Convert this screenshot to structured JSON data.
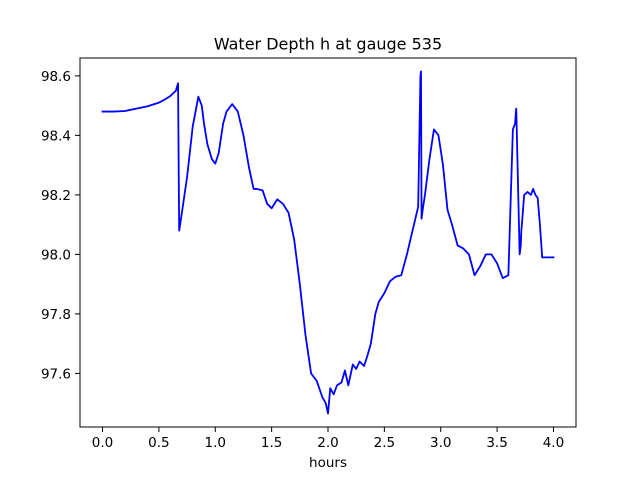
{
  "chart_data": {
    "type": "line",
    "title": "Water Depth h at gauge 535",
    "xlabel": "hours",
    "ylabel": "",
    "xlim": [
      -0.2,
      4.2
    ],
    "ylim": [
      97.42,
      98.66
    ],
    "xticks": [
      0.0,
      0.5,
      1.0,
      1.5,
      2.0,
      2.5,
      3.0,
      3.5,
      4.0
    ],
    "xtick_labels": [
      "0.0",
      "0.5",
      "1.0",
      "1.5",
      "2.0",
      "2.5",
      "3.0",
      "3.5",
      "4.0"
    ],
    "yticks": [
      97.6,
      97.8,
      98.0,
      98.2,
      98.4,
      98.6
    ],
    "ytick_labels": [
      "97.6",
      "97.8",
      "98.0",
      "98.2",
      "98.4",
      "98.6"
    ],
    "grid": false,
    "series": [
      {
        "color": "#0000ff",
        "x": [
          0.0,
          0.1,
          0.2,
          0.3,
          0.4,
          0.5,
          0.55,
          0.6,
          0.65,
          0.67,
          0.675,
          0.68,
          0.7,
          0.75,
          0.8,
          0.85,
          0.88,
          0.9,
          0.93,
          0.97,
          1.0,
          1.03,
          1.07,
          1.1,
          1.15,
          1.2,
          1.25,
          1.3,
          1.34,
          1.37,
          1.42,
          1.46,
          1.5,
          1.55,
          1.6,
          1.65,
          1.7,
          1.75,
          1.8,
          1.85,
          1.9,
          1.95,
          1.98,
          2.0,
          2.02,
          2.05,
          2.08,
          2.12,
          2.15,
          2.18,
          2.22,
          2.25,
          2.28,
          2.32,
          2.35,
          2.38,
          2.42,
          2.45,
          2.5,
          2.55,
          2.6,
          2.65,
          2.7,
          2.75,
          2.8,
          2.82,
          2.825,
          2.83,
          2.84,
          2.86,
          2.9,
          2.94,
          2.98,
          3.02,
          3.06,
          3.1,
          3.15,
          3.2,
          3.25,
          3.3,
          3.35,
          3.4,
          3.45,
          3.5,
          3.55,
          3.6,
          3.64,
          3.66,
          3.665,
          3.67,
          3.7,
          3.71,
          3.715,
          3.72,
          3.74,
          3.77,
          3.8,
          3.82,
          3.84,
          3.86,
          3.88,
          3.9,
          3.93,
          3.96,
          4.0
        ],
        "y": [
          98.48,
          98.48,
          98.482,
          98.49,
          98.498,
          98.51,
          98.52,
          98.532,
          98.55,
          98.575,
          98.3,
          98.08,
          98.13,
          98.26,
          98.43,
          98.53,
          98.5,
          98.44,
          98.37,
          98.32,
          98.305,
          98.34,
          98.44,
          98.48,
          98.505,
          98.48,
          98.4,
          98.29,
          98.22,
          98.22,
          98.215,
          98.17,
          98.155,
          98.185,
          98.17,
          98.14,
          98.05,
          97.9,
          97.73,
          97.6,
          97.575,
          97.52,
          97.5,
          97.465,
          97.55,
          97.53,
          97.56,
          97.57,
          97.61,
          97.56,
          97.63,
          97.615,
          97.64,
          97.625,
          97.66,
          97.7,
          97.8,
          97.84,
          97.87,
          97.91,
          97.925,
          97.93,
          98.0,
          98.08,
          98.16,
          98.6,
          98.615,
          98.12,
          98.15,
          98.2,
          98.32,
          98.42,
          98.4,
          98.3,
          98.15,
          98.1,
          98.03,
          98.02,
          98.0,
          97.93,
          97.96,
          98.0,
          98.0,
          97.97,
          97.92,
          97.93,
          98.42,
          98.44,
          98.47,
          98.49,
          98.0,
          98.03,
          98.08,
          98.1,
          98.2,
          98.21,
          98.2,
          98.22,
          98.2,
          98.19,
          98.1,
          97.99,
          97.99,
          97.99,
          97.99
        ]
      }
    ]
  }
}
